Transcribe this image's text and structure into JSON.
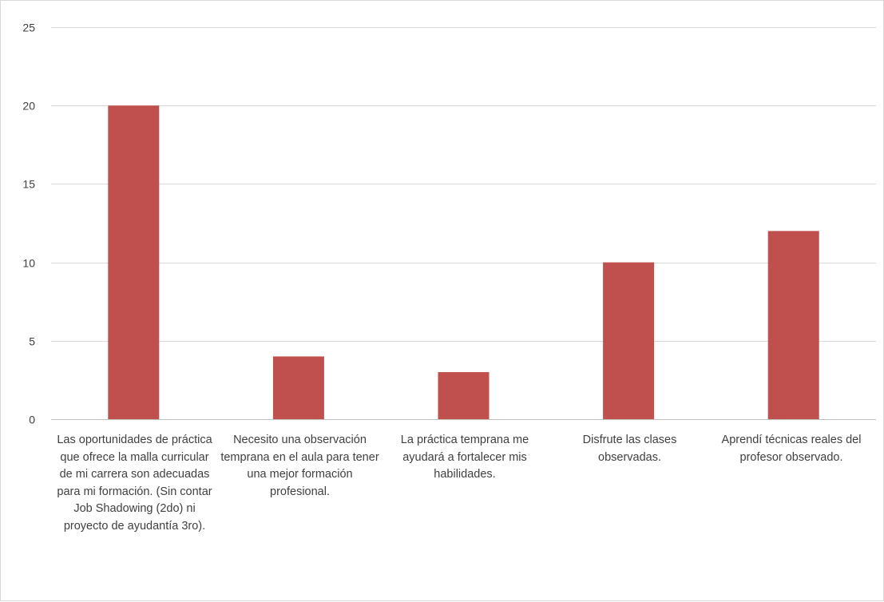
{
  "chart_data": {
    "type": "bar",
    "title": "",
    "xlabel": "",
    "ylabel": "",
    "ylim": [
      0,
      25
    ],
    "yticks": [
      "0",
      "5",
      "10",
      "15",
      "20",
      "25"
    ],
    "grid": true,
    "legend": "none",
    "categories": [
      "Las oportunidades de práctica que ofrece la malla curricular de mi carrera son adecuadas para mi formación. (Sin contar Job Shadowing (2do) ni proyecto de ayudantía 3ro).",
      "Necesito una observación temprana en el aula para tener una mejor formación profesional.",
      "La práctica temprana me ayudará a fortalecer mis habilidades.",
      "Disfrute las clases observadas.",
      "Aprendí técnicas reales del profesor observado."
    ],
    "values": [
      20,
      4,
      3,
      10,
      12
    ],
    "colors": {
      "bar": "#c0504d",
      "grid": "#d9d9d9",
      "axis": "#bfbfbf",
      "text": "#404040"
    }
  }
}
